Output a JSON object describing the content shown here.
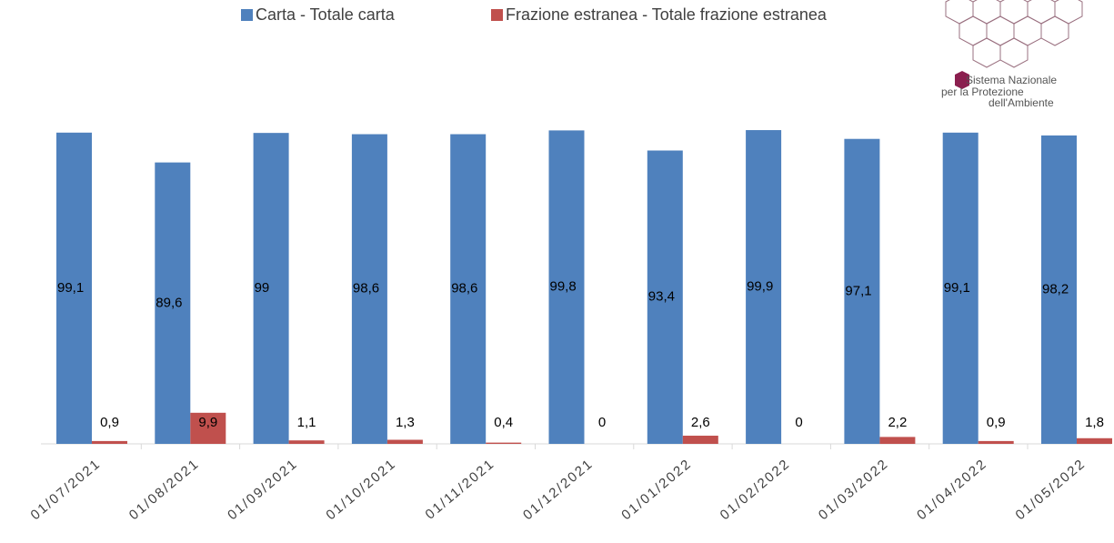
{
  "chart_data": {
    "type": "bar",
    "categories": [
      "01/07/2021",
      "01/08/2021",
      "01/09/2021",
      "01/10/2021",
      "01/11/2021",
      "01/12/2021",
      "01/01/2022",
      "01/02/2022",
      "01/03/2022",
      "01/04/2022",
      "01/05/2022"
    ],
    "series": [
      {
        "name": "Carta - Totale carta",
        "color": "#4f81bd",
        "values": [
          99.1,
          89.6,
          99,
          98.6,
          98.6,
          99.8,
          93.4,
          99.9,
          97.1,
          99.1,
          98.2
        ],
        "value_labels": [
          "99,1",
          "89,6",
          "99",
          "98,6",
          "98,6",
          "99,8",
          "93,4",
          "99,9",
          "97,1",
          "99,1",
          "98,2"
        ]
      },
      {
        "name": "Frazione estranea - Totale frazione estranea",
        "color": "#c0504d",
        "values": [
          0.9,
          9.9,
          1.1,
          1.3,
          0.4,
          0,
          2.6,
          0,
          2.2,
          0.9,
          1.8
        ],
        "value_labels": [
          "0,9",
          "9,9",
          "1,1",
          "1,3",
          "0,4",
          "0",
          "2,6",
          "0",
          "2,2",
          "0,9",
          "1,8"
        ]
      }
    ],
    "ylim": [
      0,
      100
    ]
  },
  "logo": {
    "lines": [
      "Sistema Nazionale",
      "per la Protezione",
      "dell'Ambiente"
    ]
  }
}
